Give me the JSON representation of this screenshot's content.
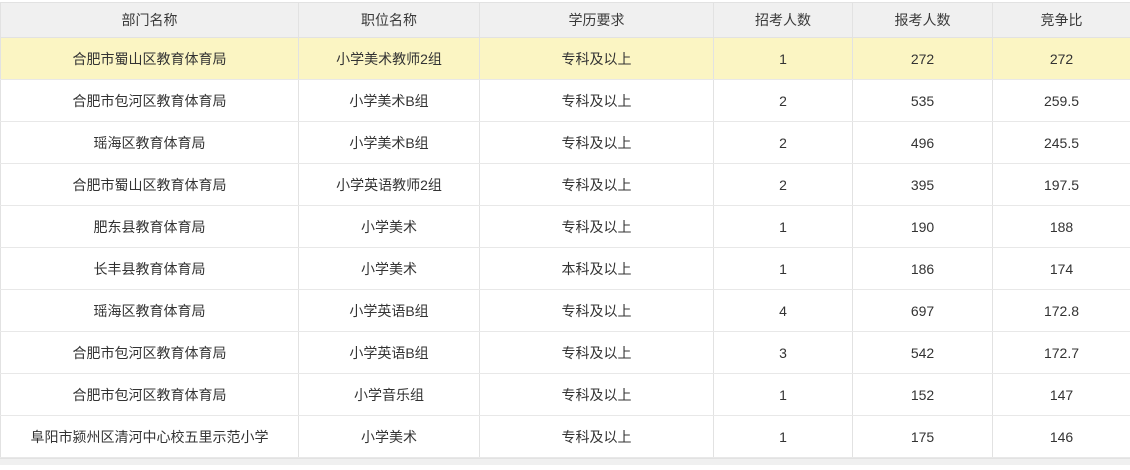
{
  "table": {
    "columns": [
      "部门名称",
      "职位名称",
      "学历要求",
      "招考人数",
      "报考人数",
      "竞争比"
    ],
    "rows": [
      {
        "highlighted": true,
        "cells": [
          "合肥市蜀山区教育体育局",
          "小学美术教师2组",
          "专科及以上",
          "1",
          "272",
          "272"
        ]
      },
      {
        "highlighted": false,
        "cells": [
          "合肥市包河区教育体育局",
          "小学美术B组",
          "专科及以上",
          "2",
          "535",
          "259.5"
        ]
      },
      {
        "highlighted": false,
        "cells": [
          "瑶海区教育体育局",
          "小学美术B组",
          "专科及以上",
          "2",
          "496",
          "245.5"
        ]
      },
      {
        "highlighted": false,
        "cells": [
          "合肥市蜀山区教育体育局",
          "小学英语教师2组",
          "专科及以上",
          "2",
          "395",
          "197.5"
        ]
      },
      {
        "highlighted": false,
        "cells": [
          "肥东县教育体育局",
          "小学美术",
          "专科及以上",
          "1",
          "190",
          "188"
        ]
      },
      {
        "highlighted": false,
        "cells": [
          "长丰县教育体育局",
          "小学美术",
          "本科及以上",
          "1",
          "186",
          "174"
        ]
      },
      {
        "highlighted": false,
        "cells": [
          "瑶海区教育体育局",
          "小学英语B组",
          "专科及以上",
          "4",
          "697",
          "172.8"
        ]
      },
      {
        "highlighted": false,
        "cells": [
          "合肥市包河区教育体育局",
          "小学英语B组",
          "专科及以上",
          "3",
          "542",
          "172.7"
        ]
      },
      {
        "highlighted": false,
        "cells": [
          "合肥市包河区教育体育局",
          "小学音乐组",
          "专科及以上",
          "1",
          "152",
          "147"
        ]
      },
      {
        "highlighted": false,
        "cells": [
          "阜阳市颍州区清河中心校五里示范小学",
          "小学美术",
          "专科及以上",
          "1",
          "175",
          "146"
        ]
      }
    ],
    "colors": {
      "header_bg": "#f0f0f0",
      "highlight_bg": "#fbf5c3",
      "border": "#e2e2e2",
      "text": "#333333"
    }
  }
}
